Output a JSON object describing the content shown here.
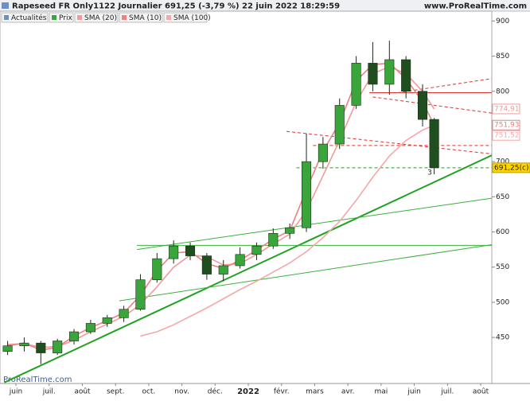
{
  "chart_data": {
    "type": "candlestick",
    "title": "Rapeseed FR Only1122 Journalier 691,25 (-3,79 %) 22 juin 2022 18:29:59",
    "site": "www.ProRealTime.com",
    "watermark": "ProRealTime.com",
    "news_button": "Actualités",
    "price_name": "Prix",
    "annotation": "3",
    "up_color": "#3aa53a",
    "down_color": "#1f4f1f",
    "x": [
      -0.5,
      0.5,
      1.5,
      2.5,
      3.5,
      4.5,
      5.5,
      6.5,
      7.5,
      8.5,
      9.5,
      10.5,
      11.5,
      12.5,
      13.5,
      14.5,
      15.5,
      16.5,
      17.5,
      18.5,
      19.5,
      20.5,
      21.5,
      22.5,
      23.5,
      24.5,
      25.2
    ],
    "open": [
      430,
      438,
      442,
      428,
      445,
      458,
      470,
      478,
      490,
      532,
      562,
      580,
      566,
      540,
      552,
      568,
      580,
      598,
      606,
      700,
      725,
      780,
      840,
      810,
      845,
      800,
      760
    ],
    "high": [
      445,
      450,
      445,
      448,
      462,
      475,
      482,
      495,
      540,
      570,
      588,
      585,
      570,
      560,
      578,
      585,
      605,
      612,
      740,
      735,
      790,
      850,
      870,
      872,
      850,
      810,
      762
    ],
    "low": [
      425,
      430,
      412,
      425,
      440,
      455,
      465,
      472,
      488,
      528,
      555,
      560,
      532,
      530,
      548,
      560,
      576,
      590,
      600,
      690,
      718,
      775,
      800,
      795,
      790,
      750,
      682
    ],
    "close": [
      438,
      442,
      428,
      445,
      458,
      470,
      478,
      490,
      532,
      562,
      580,
      566,
      540,
      552,
      568,
      580,
      598,
      606,
      700,
      725,
      780,
      840,
      810,
      845,
      800,
      760,
      691.25
    ],
    "series": [
      {
        "name": "SMA (20)",
        "color": "#f29a9a",
        "values": [
          440,
          441,
          436,
          437,
          446,
          458,
          469,
          480,
          497,
          522,
          550,
          567,
          565,
          553,
          555,
          568,
          583,
          597,
          630,
          680,
          730,
          785,
          825,
          835,
          825,
          800,
          774.91
        ]
      },
      {
        "name": "SMA (10)",
        "color": "#ee8080",
        "values": [
          438,
          442,
          432,
          436,
          452,
          464,
          474,
          485,
          510,
          545,
          570,
          572,
          555,
          548,
          560,
          574,
          590,
          602,
          660,
          715,
          755,
          815,
          838,
          840,
          818,
          785,
          751.93
        ]
      },
      {
        "name": "SMA (100)",
        "color": "#f4a8a8",
        "values": [
          null,
          null,
          null,
          null,
          null,
          null,
          null,
          null,
          452,
          458,
          468,
          480,
          492,
          505,
          518,
          530,
          543,
          556,
          572,
          592,
          615,
          645,
          678,
          708,
          730,
          745,
          751.52
        ]
      }
    ],
    "xlim": [
      -0.96,
      28.67
    ],
    "ylim": [
      384.5,
      914
    ],
    "xticks": [
      {
        "value": 0,
        "label": "juin"
      },
      {
        "value": 2,
        "label": "juil."
      },
      {
        "value": 4,
        "label": "août"
      },
      {
        "value": 6,
        "label": "sept."
      },
      {
        "value": 8,
        "label": "oct."
      },
      {
        "value": 10,
        "label": "nov."
      },
      {
        "value": 12,
        "label": "déc."
      },
      {
        "value": 14,
        "label": "2022"
      },
      {
        "value": 16,
        "label": "févr."
      },
      {
        "value": 18,
        "label": "mars"
      },
      {
        "value": 20,
        "label": "avr."
      },
      {
        "value": 22,
        "label": "mai"
      },
      {
        "value": 24,
        "label": "juin"
      },
      {
        "value": 26,
        "label": "juil."
      },
      {
        "value": 28,
        "label": "août"
      }
    ],
    "yticks": [
      450,
      500,
      550,
      600,
      650,
      700,
      750,
      800,
      850,
      900
    ],
    "axis_flags": [
      {
        "value": 774.91,
        "label": "774,91",
        "color": "#f29a9a"
      },
      {
        "value": 751.93,
        "label": "751,93",
        "color": "#ee8080"
      },
      {
        "value": 751.52,
        "label": "751,52",
        "color": "#f4a8a8"
      },
      {
        "value": 691.25,
        "label": "691,25(c)",
        "color": "#ffd400"
      }
    ],
    "drawings": [
      {
        "x": [
          -0.7,
          28.67
        ],
        "y": [
          386,
          709
        ],
        "color": "#22a022",
        "style": "thick"
      },
      {
        "x": [
          6.23,
          28.67
        ],
        "y": [
          502,
          582
        ],
        "color": "#3cb03c",
        "style": "solid"
      },
      {
        "x": [
          7.29,
          28.67
        ],
        "y": [
          575,
          648
        ],
        "color": "#3cb03c",
        "style": "solid"
      },
      {
        "x": [
          7.29,
          28.67
        ],
        "y": [
          581,
          581
        ],
        "color": "#3cb03c",
        "style": "solid"
      },
      {
        "x": [
          21.3,
          28.67
        ],
        "y": [
          798,
          798
        ],
        "color": "#e03030",
        "style": "solid"
      },
      {
        "x": [
          21.5,
          28.67
        ],
        "y": [
          792,
          769
        ],
        "color": "#e03030",
        "style": "dashed"
      },
      {
        "x": [
          23.0,
          28.67
        ],
        "y": [
          798,
          818
        ],
        "color": "#e03030",
        "style": "dashed"
      },
      {
        "x": [
          16.3,
          28.67
        ],
        "y": [
          743,
          711
        ],
        "color": "#e03030",
        "style": "dashed"
      },
      {
        "x": [
          17.9,
          28.67
        ],
        "y": [
          723,
          723
        ],
        "color": "#e03030",
        "style": "dashed"
      },
      {
        "x": [
          16.9,
          28.67
        ],
        "y": [
          691.25,
          691.25
        ],
        "color": "#2a9a2a",
        "style": "dashed"
      }
    ]
  }
}
